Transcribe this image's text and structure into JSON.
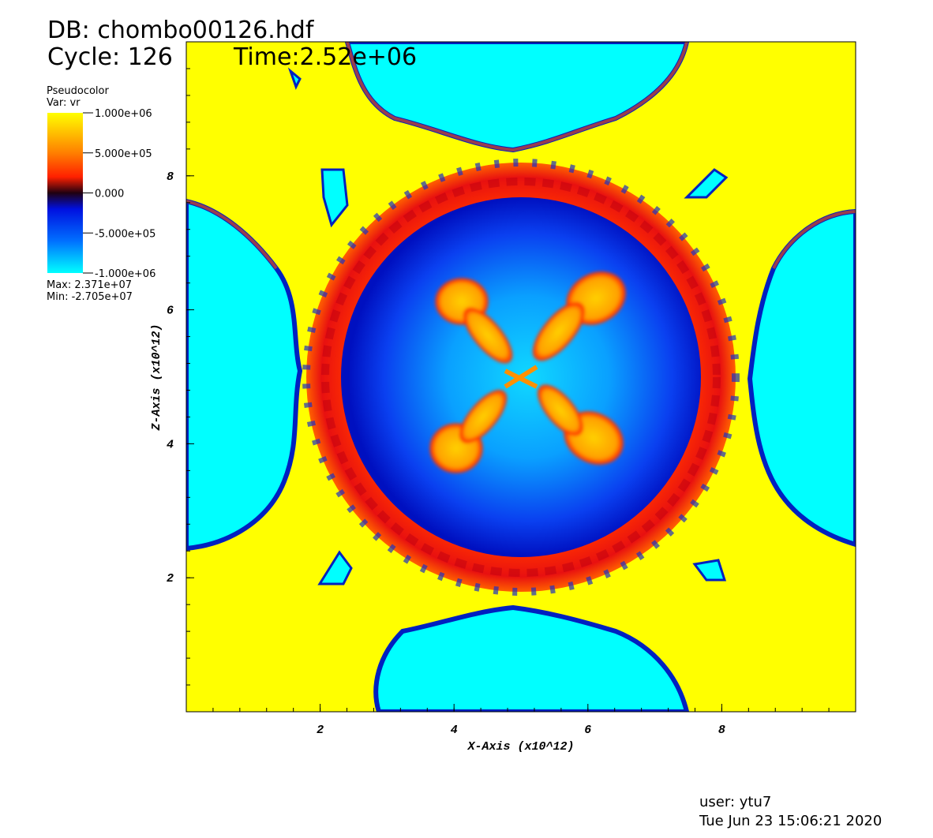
{
  "chart_data": {
    "type": "heatmap",
    "db": "DB: chombo00126.hdf",
    "cycle": "Cycle: 126",
    "time": "Time:2.52e+06",
    "legend": {
      "plot": "Pseudocolor",
      "var": "Var: vr",
      "lim": [
        -1000000,
        1000000
      ],
      "ticks": [
        {
          "value": 1000000,
          "label": "1.000e+06"
        },
        {
          "value": 500000,
          "label": "5.000e+05"
        },
        {
          "value": 0,
          "label": "0.000"
        },
        {
          "value": -500000,
          "label": "-5.000e+05"
        },
        {
          "value": -1000000,
          "label": "-1.000e+06"
        }
      ],
      "max": "Max: 2.371e+07",
      "min": "Min: -2.705e+07"
    },
    "xlabel": "X-Axis (x10^12)",
    "ylabel": "Z-Axis (x10^12)",
    "xlim": [
      0,
      10
    ],
    "ylim": [
      0,
      10
    ],
    "xticks": [
      2,
      4,
      6,
      8
    ],
    "yticks": [
      2,
      4,
      6,
      8
    ],
    "user": "user: ytu7",
    "date": "Tue Jun 23 15:06:21 2020"
  }
}
